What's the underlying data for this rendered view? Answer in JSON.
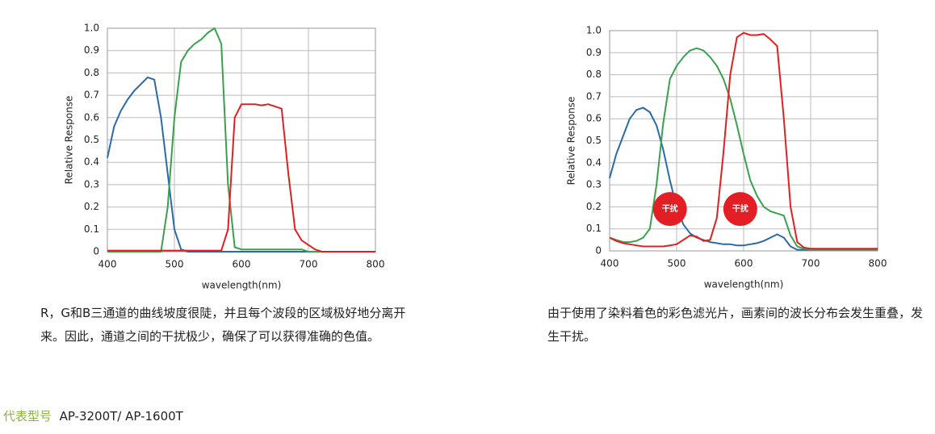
{
  "chart_data": [
    {
      "type": "line",
      "x_label": "wavelength(nm)",
      "y_label": "Relative Response",
      "x": [
        400,
        410,
        420,
        430,
        440,
        450,
        460,
        470,
        480,
        490,
        500,
        510,
        520,
        530,
        540,
        550,
        560,
        570,
        580,
        590,
        600,
        610,
        620,
        630,
        640,
        650,
        660,
        670,
        680,
        690,
        700,
        710,
        720,
        730,
        740,
        750,
        760,
        770,
        780,
        790,
        800
      ],
      "xlim": [
        400,
        800
      ],
      "ylim": [
        0,
        1
      ],
      "xticks": [
        400,
        500,
        600,
        700,
        800
      ],
      "yticks": [
        0,
        0.1,
        0.2,
        0.3,
        0.4,
        0.5,
        0.6,
        0.7,
        0.8,
        0.9,
        {
          "value": 1,
          "label": "1.0"
        }
      ],
      "grid": true,
      "series": [
        {
          "color": "#2a6aa8",
          "values": [
            0.42,
            0.56,
            0.63,
            0.68,
            0.72,
            0.75,
            0.78,
            0.77,
            0.6,
            0.35,
            0.1,
            0.01,
            0,
            0,
            0,
            0,
            0,
            0,
            0,
            0,
            0,
            0,
            0,
            0,
            0,
            0,
            0,
            0,
            0,
            0,
            0,
            0,
            0,
            0,
            0,
            0,
            0,
            0,
            0,
            0,
            0
          ]
        },
        {
          "color": "#3aa050",
          "values": [
            0,
            0,
            0,
            0,
            0,
            0,
            0,
            0,
            0,
            0.2,
            0.6,
            0.85,
            0.9,
            0.93,
            0.95,
            0.98,
            1,
            0.93,
            0.3,
            0.02,
            0.01,
            0.01,
            0.01,
            0.01,
            0.01,
            0.01,
            0.01,
            0.01,
            0.01,
            0.01,
            0,
            0,
            0,
            0,
            0,
            0,
            0,
            0,
            0,
            0,
            0
          ]
        },
        {
          "color": "#e02020",
          "values": [
            0.005,
            0.005,
            0.005,
            0.005,
            0.005,
            0.005,
            0.005,
            0.005,
            0.005,
            0.005,
            0.005,
            0.005,
            0.005,
            0.005,
            0.005,
            0.005,
            0.005,
            0.005,
            0.1,
            0.6,
            0.66,
            0.66,
            0.66,
            0.655,
            0.66,
            0.65,
            0.64,
            0.35,
            0.1,
            0.05,
            0.03,
            0.01,
            0,
            0,
            0,
            0,
            0,
            0,
            0,
            0,
            0
          ]
        }
      ]
    },
    {
      "type": "line",
      "x_label": "wavelength(nm)",
      "y_label": "Relative Response",
      "x": [
        400,
        410,
        420,
        430,
        440,
        450,
        460,
        470,
        480,
        490,
        500,
        510,
        520,
        530,
        540,
        550,
        560,
        570,
        580,
        590,
        600,
        610,
        620,
        630,
        640,
        650,
        660,
        670,
        680,
        690,
        700,
        710,
        720,
        730,
        740,
        750,
        760,
        770,
        780,
        790,
        800
      ],
      "xlim": [
        400,
        800
      ],
      "ylim": [
        0,
        1
      ],
      "xticks": [
        400,
        500,
        600,
        700,
        800
      ],
      "yticks": [
        0,
        0.1,
        0.2,
        0.3,
        0.4,
        0.5,
        0.6,
        0.7,
        0.8,
        0.9,
        {
          "value": 1,
          "label": "1.0"
        }
      ],
      "grid": true,
      "series": [
        {
          "color": "#2a6aa8",
          "values": [
            0.33,
            0.44,
            0.52,
            0.6,
            0.64,
            0.65,
            0.63,
            0.57,
            0.46,
            0.32,
            0.2,
            0.12,
            0.08,
            0.06,
            0.05,
            0.04,
            0.035,
            0.03,
            0.03,
            0.025,
            0.025,
            0.03,
            0.035,
            0.045,
            0.06,
            0.075,
            0.06,
            0.02,
            0.005,
            0.005,
            0.005,
            0.005,
            0.005,
            0.005,
            0.005,
            0.005,
            0.005,
            0.005,
            0.005,
            0.005,
            0.005
          ]
        },
        {
          "color": "#3aa050",
          "values": [
            0.06,
            0.05,
            0.04,
            0.04,
            0.045,
            0.06,
            0.1,
            0.3,
            0.58,
            0.78,
            0.84,
            0.88,
            0.91,
            0.92,
            0.91,
            0.88,
            0.84,
            0.78,
            0.69,
            0.57,
            0.44,
            0.32,
            0.25,
            0.2,
            0.18,
            0.17,
            0.16,
            0.07,
            0.02,
            0.01,
            0.005,
            0.005,
            0.005,
            0.005,
            0.005,
            0.005,
            0.005,
            0.005,
            0.005,
            0.005,
            0.005
          ]
        },
        {
          "color": "#e02020",
          "values": [
            0.06,
            0.045,
            0.035,
            0.03,
            0.025,
            0.02,
            0.02,
            0.02,
            0.02,
            0.025,
            0.03,
            0.05,
            0.07,
            0.065,
            0.045,
            0.05,
            0.15,
            0.45,
            0.8,
            0.97,
            0.99,
            0.98,
            0.98,
            0.985,
            0.96,
            0.93,
            0.6,
            0.2,
            0.04,
            0.015,
            0.01,
            0.01,
            0.01,
            0.01,
            0.01,
            0.01,
            0.01,
            0.01,
            0.01,
            0.01,
            0.01
          ]
        }
      ],
      "annotations": [
        {
          "text": "干扰",
          "x": 490,
          "y": 0.19
        },
        {
          "text": "干扰",
          "x": 595,
          "y": 0.19
        }
      ]
    }
  ],
  "captions": [
    "R，G和B三通道的曲线坡度很陡，并且每个波段的区域极好地分离开来。因此，通道之间的干扰极少，确保了可以获得准确的色值。",
    "由于使用了染料着色的彩色滤光片，画素间的波长分布会发生重叠，发生干扰。"
  ],
  "footer": {
    "label": "代表型号",
    "models": "AP-3200T/ AP-1600T"
  }
}
